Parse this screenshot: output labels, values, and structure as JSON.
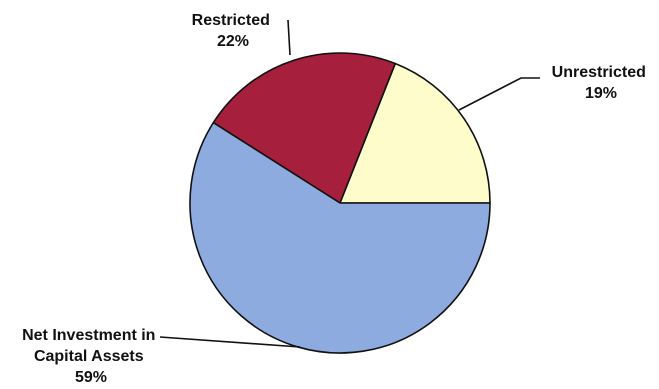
{
  "chart_data": {
    "type": "pie",
    "title": "",
    "slices": [
      {
        "label_lines": [
          "Unrestricted"
        ],
        "pct_label": "19%",
        "value": 19,
        "color": "#fffccc"
      },
      {
        "label_lines": [
          "Restricted"
        ],
        "pct_label": "22%",
        "value": 22,
        "color": "#a61f3c"
      },
      {
        "label_lines": [
          "Net Investment in",
          "Capital Assets"
        ],
        "pct_label": "59%",
        "value": 59,
        "color": "#8eabe0"
      }
    ]
  }
}
